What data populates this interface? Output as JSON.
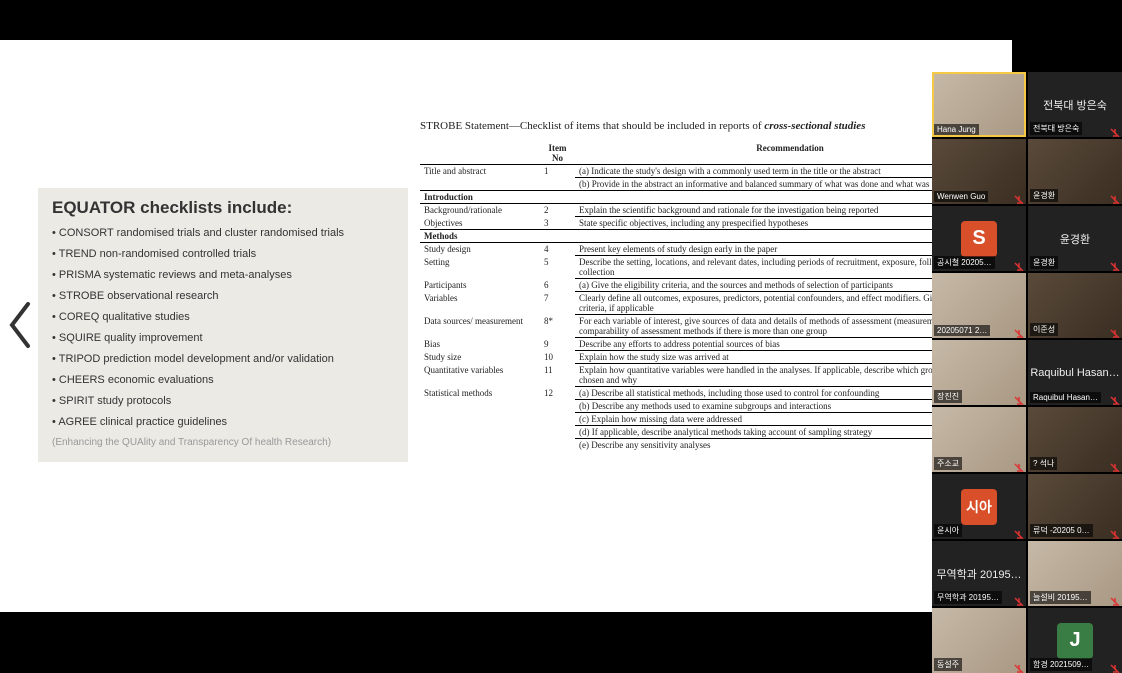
{
  "colors": {
    "page_bg": "#000000",
    "slide_bg": "#ffffff",
    "left_panel_bg": "#eceae5",
    "text_primary": "#333333",
    "text_muted": "#999999",
    "table_border": "#000000",
    "speaker_outline": "#f6c945",
    "letter_tile_S": "#d84f2a",
    "letter_tile_sia": "#d84f2a",
    "letter_tile_J": "#3a7d44",
    "participant_bg": "#222222"
  },
  "typography": {
    "equator_title_size": 17,
    "equator_item_size": 11,
    "equator_footer_size": 10,
    "strobe_title_size": 11,
    "strobe_table_size": 9,
    "participant_name_size": 8
  },
  "equator": {
    "title": "EQUATOR checklists include:",
    "items": [
      "CONSORT randomised trials and cluster randomised trials",
      "TREND non-randomised controlled trials",
      "PRISMA systematic reviews and meta-analyses",
      "STROBE observational research",
      "COREQ qualitative studies",
      "SQUIRE quality improvement",
      "TRIPOD prediction model development and/or validation",
      "CHEERS economic evaluations",
      "SPIRIT study protocols",
      "AGREE clinical practice guidelines"
    ],
    "footer": "(Enhancing the QUAlity and Transparency Of health Research)"
  },
  "strobe": {
    "title_pre": "STROBE Statement—Checklist of items that should be included in reports of ",
    "title_em": "cross-sectional studies",
    "head_item": "Item",
    "head_no": "No",
    "head_rec": "Recommendation",
    "sections": {
      "title_abstract": "Title and abstract",
      "introduction": "Introduction",
      "methods": "Methods"
    },
    "rows": {
      "r1a": {
        "label": "Title and abstract",
        "no": "1",
        "rec": "(a) Indicate the study's design with a commonly used term in the title or the abstract"
      },
      "r1b": {
        "rec": "(b) Provide in the abstract an informative and balanced summary of what was done and what was found"
      },
      "r2": {
        "label": "Background/rationale",
        "no": "2",
        "rec": "Explain the scientific background and rationale for the investigation being reported"
      },
      "r3": {
        "label": "Objectives",
        "no": "3",
        "rec": "State specific objectives, including any prespecified hypotheses"
      },
      "r4": {
        "label": "Study design",
        "no": "4",
        "rec": "Present key elements of study design early in the paper"
      },
      "r5": {
        "label": "Setting",
        "no": "5",
        "rec": "Describe the setting, locations, and relevant dates, including periods of recruitment, exposure, follow-up, and data collection"
      },
      "r6": {
        "label": "Participants",
        "no": "6",
        "rec": "(a) Give the eligibility criteria, and the sources and methods of selection of participants"
      },
      "r7": {
        "label": "Variables",
        "no": "7",
        "rec": "Clearly define all outcomes, exposures, predictors, potential confounders, and effect modifiers. Give diagnostic criteria, if applicable"
      },
      "r8": {
        "label": "Data sources/ measurement",
        "no": "8*",
        "rec": "For each variable of interest, give sources of data and details of methods of assessment (measurement). Describe comparability of assessment methods if there is more than one group"
      },
      "r9": {
        "label": "Bias",
        "no": "9",
        "rec": "Describe any efforts to address potential sources of bias"
      },
      "r10": {
        "label": "Study size",
        "no": "10",
        "rec": "Explain how the study size was arrived at"
      },
      "r11": {
        "label": "Quantitative variables",
        "no": "11",
        "rec": "Explain how quantitative variables were handled in the analyses. If applicable, describe which groupings were chosen and why"
      },
      "r12a": {
        "label": "Statistical methods",
        "no": "12",
        "rec": "(a) Describe all statistical methods, including those used to control for confounding"
      },
      "r12b": {
        "rec": "(b) Describe any methods used to examine subgroups and interactions"
      },
      "r12c": {
        "rec": "(c) Explain how missing data were addressed"
      },
      "r12d": {
        "rec": "(d) If applicable, describe analytical methods taking account of sampling strategy"
      },
      "r12e": {
        "rec": "(e) Describe any sensitivity analyses"
      }
    }
  },
  "participants": [
    {
      "name": "Hana Jung",
      "type": "video-light",
      "speaker": true,
      "muted": false
    },
    {
      "name": "전북대 방은숙",
      "type": "placeholder",
      "speaker": false,
      "muted": true
    },
    {
      "name": "Wenwen Guo",
      "type": "video-room",
      "speaker": false,
      "muted": true
    },
    {
      "name": "윤경환",
      "type": "video-room",
      "speaker": false,
      "muted": true
    },
    {
      "name": "공시철 20205…",
      "type": "letter",
      "letter": "S",
      "bg": "#d84f2a",
      "speaker": false,
      "muted": true
    },
    {
      "name": "윤경환",
      "type": "placeholder",
      "speaker": false,
      "muted": true
    },
    {
      "name": "20205071 2…",
      "type": "video-light",
      "speaker": false,
      "muted": true
    },
    {
      "name": "이준성",
      "type": "video-room",
      "speaker": false,
      "muted": true
    },
    {
      "name": "장진진",
      "type": "video-light",
      "speaker": false,
      "muted": true
    },
    {
      "name": "Raquibul Hasan…",
      "type": "placeholder",
      "speaker": false,
      "muted": true
    },
    {
      "name": "주소교",
      "type": "video-light",
      "speaker": false,
      "muted": true
    },
    {
      "name": "? 석나",
      "type": "video-room",
      "speaker": false,
      "muted": true
    },
    {
      "name": "윤시아",
      "type": "letter",
      "letter": "시아",
      "bg": "#d84f2a",
      "speaker": false,
      "muted": true
    },
    {
      "name": "류덕 -20205 0…",
      "type": "video-room",
      "speaker": false,
      "muted": true
    },
    {
      "name": "무역학과 20195…",
      "type": "placeholder",
      "speaker": false,
      "muted": true
    },
    {
      "name": "늘설비 20195…",
      "type": "video-light",
      "speaker": false,
      "muted": true
    },
    {
      "name": "동설주",
      "type": "video-light",
      "speaker": false,
      "muted": true
    },
    {
      "name": "함경 2021509…",
      "type": "letter",
      "letter": "J",
      "bg": "#3a7d44",
      "speaker": false,
      "muted": true
    }
  ]
}
